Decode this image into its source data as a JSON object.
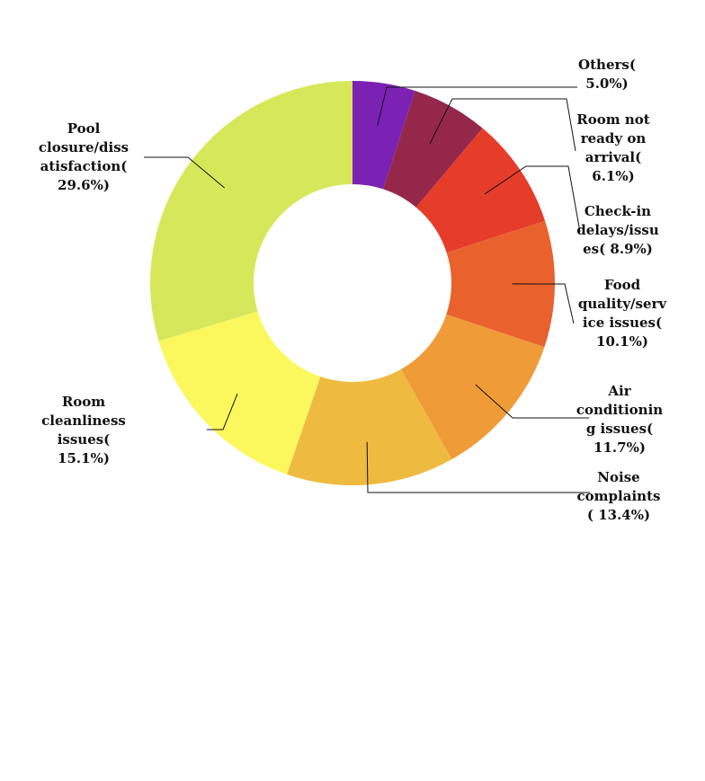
{
  "chart_data": {
    "type": "pie",
    "style": "donut",
    "start": "top",
    "direction": "clockwise",
    "legend": "none",
    "slices": [
      {
        "label": [
          "Others(",
          "5.0%)"
        ],
        "value": 5.0,
        "color": "#7b22b4"
      },
      {
        "label": [
          "Room not",
          "ready on",
          "arrival(",
          "6.1%)"
        ],
        "value": 6.1,
        "color": "#95284a"
      },
      {
        "label": [
          "Check-in",
          "delays/issu",
          "es( 8.9%)"
        ],
        "value": 8.9,
        "color": "#e53d2a"
      },
      {
        "label": [
          "Food",
          "quality/serv",
          "ice issues(",
          "10.1%)"
        ],
        "value": 10.1,
        "color": "#e9622d"
      },
      {
        "label": [
          "Air",
          "conditionin",
          "g issues(",
          "11.7%)"
        ],
        "value": 11.7,
        "color": "#ef9b38"
      },
      {
        "label": [
          "Noise",
          "complaints",
          "( 13.4%)"
        ],
        "value": 13.4,
        "color": "#eeba40"
      },
      {
        "label": [
          "Room",
          "cleanliness",
          "issues(",
          "15.1%)"
        ],
        "value": 15.1,
        "color": "#fbf85e"
      },
      {
        "label": [
          "Pool",
          "closure/diss",
          "atisfaction(",
          "29.6%)"
        ],
        "value": 29.6,
        "color": "#d6e85a"
      }
    ]
  }
}
